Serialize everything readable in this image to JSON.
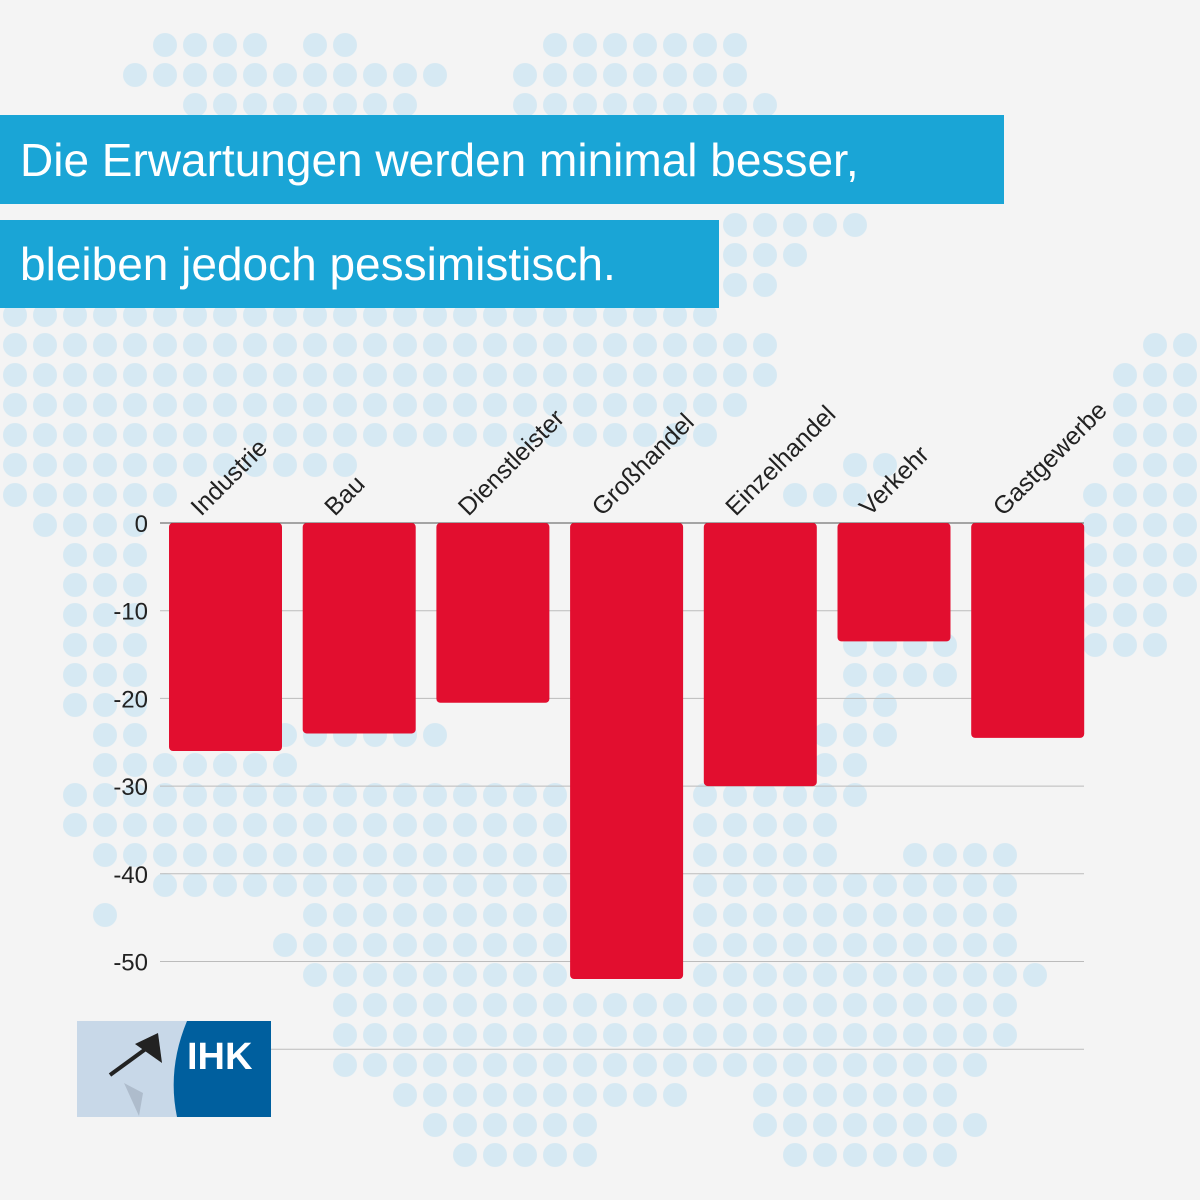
{
  "title_line1": "Die Erwartungen werden minimal besser,",
  "title_line2": "bleiben jedoch pessimistisch.",
  "logo_text": "IHK",
  "colors": {
    "bar": "#e20e2f",
    "title_bg": "#1aa5d6",
    "background": "#f4f4f4",
    "dots": "#d6e9f3",
    "logo_blue": "#005f9e",
    "logo_light": "#c8d8e8"
  },
  "chart_data": {
    "type": "bar",
    "categories": [
      "Industrie",
      "Bau",
      "Dienstleister",
      "Großhandel",
      "Einzelhandel",
      "Verkehr",
      "Gastgewerbe"
    ],
    "values": [
      -26,
      -24,
      -20.5,
      -52,
      -30,
      -13.5,
      -24.5
    ],
    "ylim": [
      -60,
      0
    ],
    "yticks": [
      0,
      -10,
      -20,
      -30,
      -40,
      -50
    ],
    "grid": true,
    "xlabel": "",
    "ylabel": "",
    "title": ""
  }
}
